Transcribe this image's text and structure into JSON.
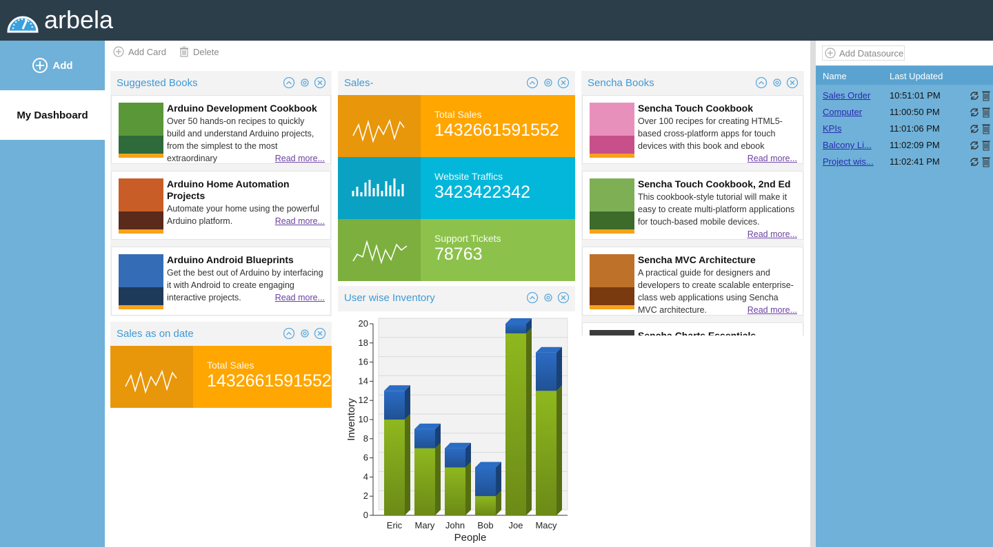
{
  "header": {
    "brand": "arbela"
  },
  "sidebar": {
    "add": "Add",
    "items": [
      "My Dashboard"
    ]
  },
  "toolbar": {
    "add_card": "Add Card",
    "delete": "Delete"
  },
  "suggested_books": {
    "title": "Suggested Books",
    "books": [
      {
        "title": "Arduino Development Cookbook",
        "description": "Over 50 hands-on recipes to quickly build and understand Arduino projects, from the simplest to the most extraordinary",
        "link": "Read more..."
      },
      {
        "title": "Arduino Home Automation Projects",
        "description": "Automate your home using the powerful Arduino platform.",
        "link": "Read more..."
      },
      {
        "title": "Arduino Android Blueprints",
        "description": "Get the best out of Arduino by interfacing it with Android to create engaging interactive projects.",
        "link": "Read more..."
      }
    ]
  },
  "sales": {
    "title": "Sales-",
    "tiles": [
      {
        "label": "Total Sales",
        "value": 1432661591552
      },
      {
        "label": "Website Traffics",
        "value": 3423422342
      },
      {
        "label": "Support Tickets",
        "value": 78763
      }
    ]
  },
  "sales_on_date": {
    "title": "Sales as on date",
    "tiles": [
      {
        "label": "Total Sales",
        "value": 1432661591552
      }
    ]
  },
  "inventory": {
    "title": "User wise Inventory"
  },
  "chart_data": {
    "type": "bar",
    "stacked": true,
    "categories": [
      "Eric",
      "Mary",
      "John",
      "Bob",
      "Joe",
      "Macy"
    ],
    "series": [
      {
        "color": "#8fb81e",
        "values": [
          10,
          7,
          5,
          2,
          19,
          13
        ]
      },
      {
        "color": "#2b6cc4",
        "values": [
          3,
          2,
          2,
          3,
          1,
          4
        ]
      }
    ],
    "ylim": [
      0,
      20
    ],
    "yticks": [
      0,
      2,
      4,
      6,
      8,
      10,
      12,
      14,
      16,
      18,
      20
    ],
    "y_label": "Inventory",
    "x_label": "People",
    "grid": true
  },
  "sencha_books": {
    "title": "Sencha Books",
    "books": [
      {
        "title": "Sencha Touch Cookbook",
        "description": "Over 100 recipes for creating HTML5-based cross-platform apps for touch devices with this book and ebook",
        "link": "Read more..."
      },
      {
        "title": "Sencha Touch Cookbook, 2nd Ed",
        "description": "This cookbook-style tutorial will make it easy to create multi-platform applications for touch-based mobile devices.",
        "link": "Read more..."
      },
      {
        "title": "Sencha MVC Architecture",
        "description": "A practical guide for designers and developers to create scalable enterprise-class web applications using Sencha MVC architecture.",
        "link": "Read more..."
      },
      {
        "title": "Sencha Charts Essentials"
      }
    ]
  },
  "datasources": {
    "add": "Add Datasource",
    "columns": [
      "Name",
      "Last Updated"
    ],
    "rows": [
      [
        "Sales Order",
        "10:51:01 PM"
      ],
      [
        "Computer",
        "11:00:50 PM"
      ],
      [
        "KPIs",
        "11:01:06 PM"
      ],
      [
        "Balcony Li...",
        "11:02:09 PM"
      ],
      [
        "Project wis...",
        "11:02:41 PM"
      ]
    ]
  }
}
